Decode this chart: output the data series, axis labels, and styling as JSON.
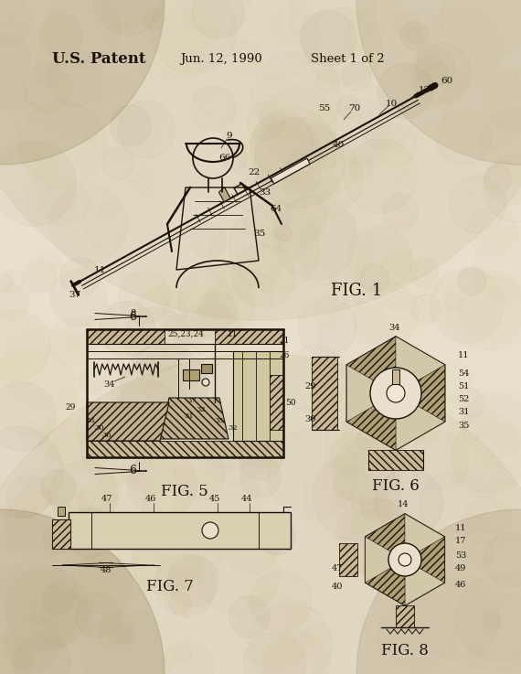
{
  "bg_color": "#e8e0cc",
  "bg_color2": "#d4c9a8",
  "ink": "#1a1208",
  "title1": "U.S. Patent",
  "title2": "Jun. 12, 1990",
  "title3": "Sheet 1 of 2",
  "fig1_label": "FIG. 1",
  "fig5_label": "FIG. 5",
  "fig6_label": "FIG. 6",
  "fig7_label": "FIG. 7",
  "fig8_label": "FIG. 8",
  "figsize": [
    5.7,
    7.37
  ],
  "dpi": 100
}
